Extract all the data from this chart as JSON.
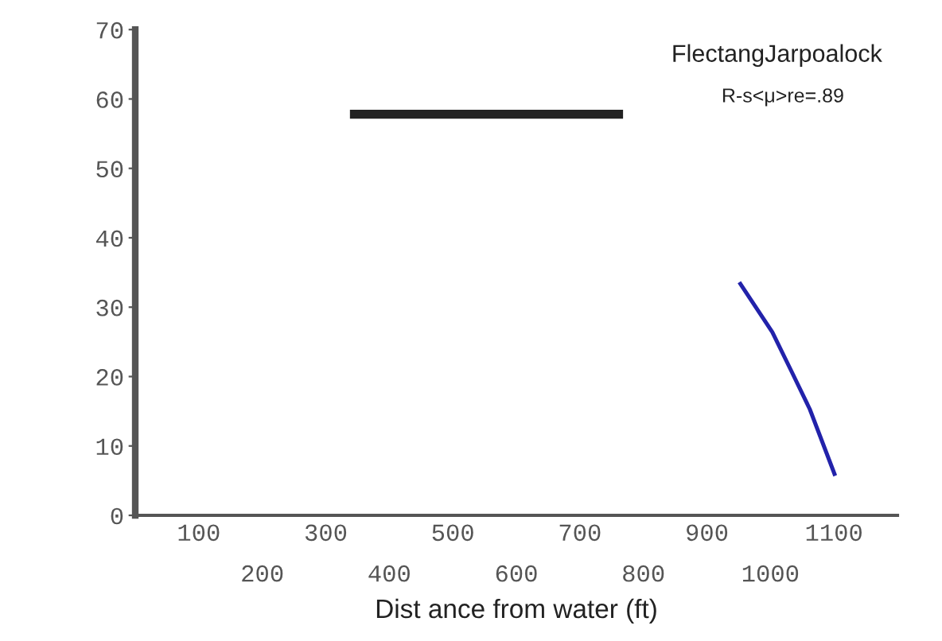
{
  "chart_data": {
    "type": "line",
    "xlabel": "Dist ance from water (ft)",
    "annotations": [
      "FlectangJarpoalock",
      "R-s<μ>re=.89"
    ],
    "series": [
      {
        "color": "#222222",
        "x": [
          338,
          768
        ],
        "values": [
          57.8,
          57.8
        ]
      },
      {
        "color": "#2222aa",
        "x": [
          951,
          1003,
          1034,
          1062,
          1102
        ],
        "values": [
          33.6,
          26.4,
          20.6,
          15.3,
          5.7
        ]
      }
    ],
    "xlim": [
      0,
      1200
    ],
    "xticks": [
      100,
      300,
      500,
      700,
      900,
      1100
    ],
    "x2lim": [
      0,
      1200
    ],
    "x2ticks": [
      200,
      400,
      600,
      800,
      1000
    ],
    "ylim": [
      0,
      70
    ],
    "yticks": [
      0,
      10,
      20,
      30,
      40,
      50,
      60,
      70
    ],
    "grid": false,
    "legend": false
  }
}
